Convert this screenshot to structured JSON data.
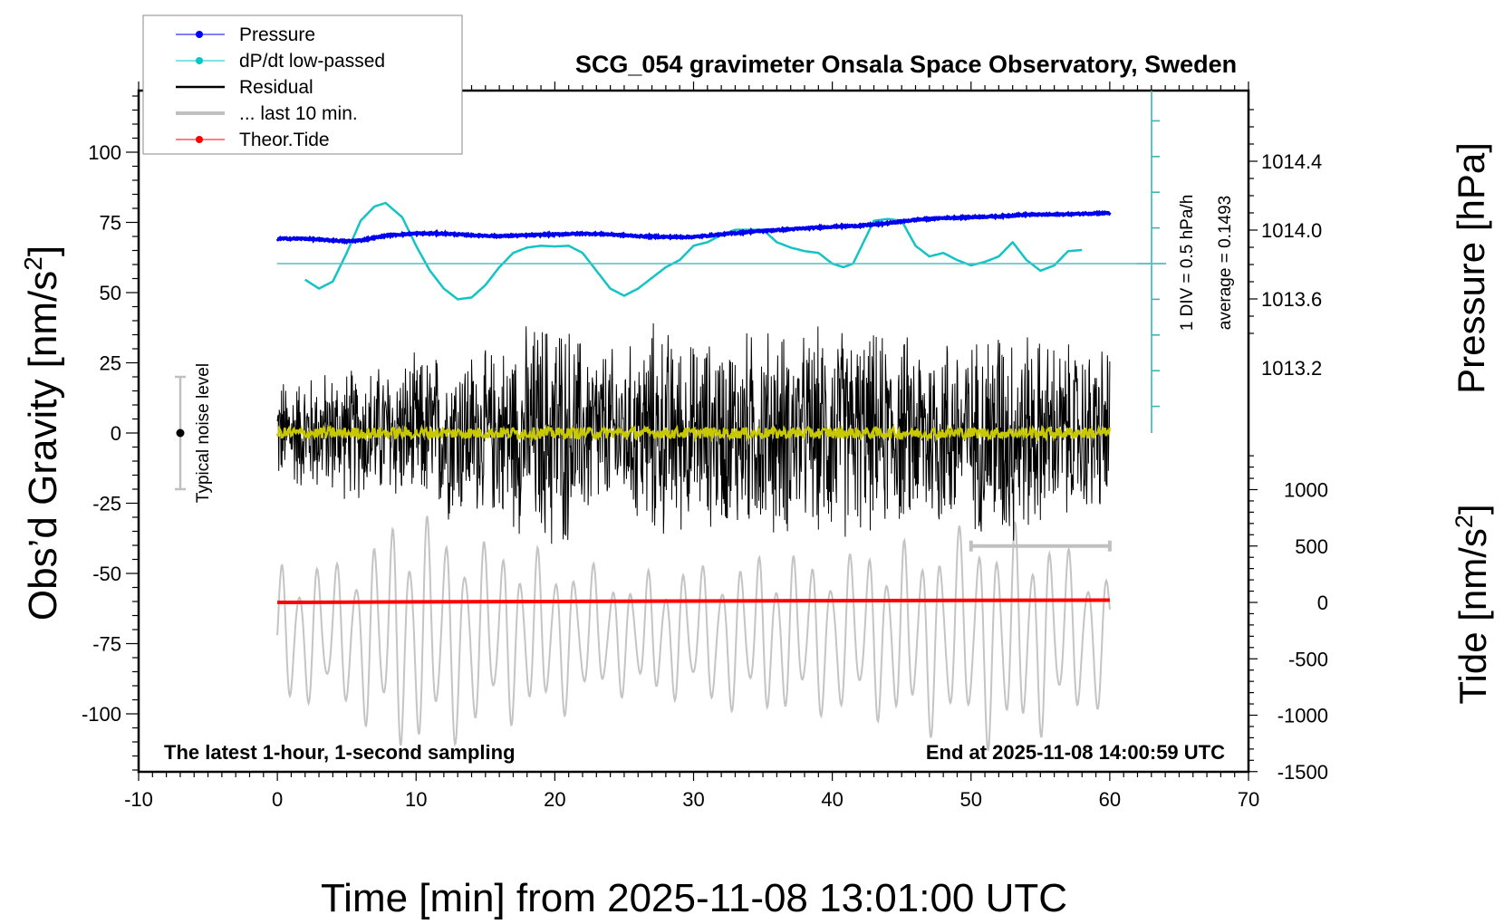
{
  "chart_data": {
    "type": "line",
    "title": "SCG_054 gravimeter Onsala Space Observatory, Sweden",
    "xlabel": "Time [min] from 2025-11-08 13:01:00 UTC",
    "ylabel_left": "Obs’d Gravity [nm/s",
    "ylabel_left_sup": "2",
    "ylabel_left_close": "]",
    "ylabel_right_pressure": "Pressure [hPa]",
    "ylabel_right_tide": "Tide [nm/s",
    "ylabel_right_tide_sup": "2",
    "ylabel_right_tide_close": "]",
    "xlim": [
      -10,
      70
    ],
    "ylim_left": [
      -120,
      120
    ],
    "x_ticks": [
      "-10",
      "0",
      "10",
      "20",
      "30",
      "40",
      "50",
      "60",
      "70"
    ],
    "x_tick_values": [
      -10,
      0,
      10,
      20,
      30,
      40,
      50,
      60,
      70
    ],
    "y_left_ticks": [
      "100",
      "75",
      "50",
      "25",
      "0",
      "-25",
      "-50",
      "-75",
      "-100"
    ],
    "y_left_tick_values": [
      100,
      75,
      50,
      25,
      0,
      -25,
      -50,
      -75,
      -100
    ],
    "pressure_ticks": [
      "1014.4",
      "1014.0",
      "1013.6",
      "1013.2"
    ],
    "pressure_tick_values": [
      1014.4,
      1014.0,
      1013.6,
      1013.2
    ],
    "tide_ticks": [
      "1000",
      "500",
      "0",
      "-500",
      "-1000",
      "-1500"
    ],
    "tide_tick_values": [
      1000,
      500,
      0,
      -500,
      -1000,
      -1500
    ],
    "dpdt_axis_label": "1 DIV = 0.5 hPa/h",
    "dpdt_average_label": "average = 0.1493",
    "noise_label": "Typical noise level",
    "noise_level": 20,
    "note_left": "The latest 1-hour, 1-second sampling",
    "note_right": "End at 2025-11-08 14:00:59 UTC",
    "legend": [
      {
        "label": "Pressure",
        "color": "#0000ff",
        "marker": true
      },
      {
        "label": "dP/dt low-passed",
        "color": "#00c8c8",
        "marker": true
      },
      {
        "label": "Residual",
        "color": "#000000",
        "marker": false
      },
      {
        "label": "... last 10 min.",
        "color": "#c0c0c0",
        "marker": false
      },
      {
        "label": "Theor.Tide",
        "color": "#ff0000",
        "marker": true
      }
    ],
    "legend_position": "top-left",
    "series": [
      {
        "name": "Pressure",
        "axis": "pressure",
        "color": "#0000ff",
        "x": [
          0,
          2,
          4,
          5,
          6,
          8,
          10,
          12,
          14,
          16,
          18,
          20,
          22,
          24,
          26,
          28,
          30,
          32,
          34,
          36,
          38,
          40,
          42,
          44,
          46,
          48,
          50,
          52,
          54,
          56,
          58,
          60
        ],
        "values": [
          1013.95,
          1013.95,
          1013.94,
          1013.935,
          1013.94,
          1013.97,
          1013.98,
          1013.98,
          1013.97,
          1013.965,
          1013.97,
          1013.975,
          1013.98,
          1013.975,
          1013.965,
          1013.96,
          1013.96,
          1013.975,
          1013.99,
          1014.0,
          1014.01,
          1014.02,
          1014.025,
          1014.04,
          1014.06,
          1014.07,
          1014.075,
          1014.08,
          1014.09,
          1014.09,
          1014.095,
          1014.1
        ]
      },
      {
        "name": "dP/dt low-passed",
        "axis": "dpdt_div",
        "color": "#00c8c8",
        "x": [
          2,
          3,
          4,
          5,
          6,
          7,
          7.8,
          9,
          10,
          11,
          12,
          13,
          14,
          15,
          16,
          17,
          18,
          19,
          20,
          21,
          22,
          23,
          24,
          25,
          26,
          27,
          28,
          29,
          30,
          31,
          32,
          33,
          34,
          35,
          36,
          37,
          38,
          39,
          40,
          40.8,
          41.5,
          42,
          43,
          44,
          45,
          46,
          47,
          48,
          49,
          50,
          51,
          52,
          53,
          54,
          55,
          56,
          57,
          58
        ],
        "values": [
          -0.45,
          -0.7,
          -0.5,
          0.3,
          1.2,
          1.6,
          1.7,
          1.3,
          0.5,
          -0.2,
          -0.7,
          -1.0,
          -0.95,
          -0.6,
          -0.1,
          0.3,
          0.45,
          0.5,
          0.48,
          0.5,
          0.3,
          -0.2,
          -0.7,
          -0.9,
          -0.7,
          -0.4,
          -0.1,
          0.1,
          0.5,
          0.6,
          0.8,
          0.95,
          0.95,
          0.95,
          0.6,
          0.45,
          0.35,
          0.3,
          0.0,
          -0.1,
          0.0,
          0.4,
          1.2,
          1.25,
          1.2,
          0.5,
          0.2,
          0.3,
          0.1,
          -0.05,
          0.05,
          0.2,
          0.6,
          0.1,
          -0.2,
          -0.05,
          0.35,
          0.38
        ]
      },
      {
        "name": "Residual",
        "axis": "left",
        "color": "#000000",
        "x_range": [
          0,
          60
        ],
        "amplitude_envelope_x": [
          0,
          5,
          10,
          13,
          15,
          18,
          20,
          22,
          25,
          27,
          30,
          33,
          36,
          38,
          40,
          42,
          45,
          48,
          50,
          52,
          55,
          58,
          60
        ],
        "amplitude_envelope": [
          22,
          26,
          30,
          36,
          32,
          42,
          50,
          38,
          32,
          44,
          36,
          40,
          42,
          38,
          44,
          40,
          38,
          42,
          36,
          48,
          38,
          34,
          36
        ]
      },
      {
        "name": "Residual smoothed",
        "axis": "left",
        "color": "#c8c800",
        "x_range": [
          0,
          60
        ],
        "mean": 0,
        "amplitude": 2
      },
      {
        "name": "... last 10 min.",
        "axis": "left",
        "color": "#c0c0c0",
        "x_range": [
          0,
          60
        ],
        "baseline": -72,
        "amplitude_envelope_x": [
          0,
          5,
          8,
          10,
          12,
          15,
          20,
          25,
          30,
          35,
          40,
          45,
          50,
          52,
          55,
          58,
          60
        ],
        "amplitude_envelope": [
          26,
          28,
          42,
          45,
          42,
          35,
          30,
          22,
          26,
          30,
          30,
          34,
          40,
          42,
          38,
          30,
          25
        ]
      },
      {
        "name": "Theor.Tide",
        "axis": "tide",
        "color": "#ff0000",
        "x": [
          0,
          10,
          20,
          30,
          40,
          50,
          60
        ],
        "values": [
          0,
          5,
          8,
          12,
          15,
          18,
          20
        ]
      }
    ],
    "last10_bar": {
      "x_start": 50,
      "x_end": 60,
      "tide_level": 500
    }
  }
}
